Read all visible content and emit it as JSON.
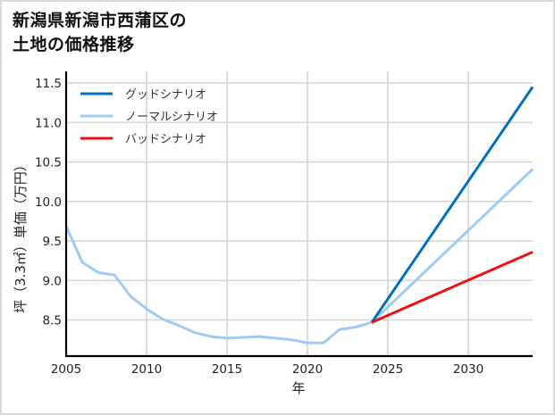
{
  "header": {
    "title_line1": "新潟県新潟市西蒲区の",
    "title_line2": "土地の価格推移"
  },
  "chart_data": {
    "type": "line",
    "title": "新潟県新潟市西蒲区の土地の価格推移",
    "xlabel": "年",
    "ylabel": "坪（3.3㎡）単価（万円）",
    "xlim": [
      2005,
      2034
    ],
    "ylim": [
      8.05,
      11.65
    ],
    "x_ticks": [
      2005,
      2010,
      2015,
      2020,
      2025,
      2030
    ],
    "y_ticks": [
      8.5,
      9.0,
      9.5,
      10.0,
      10.5,
      11.0,
      11.5
    ],
    "y_tick_labels": [
      "8.5",
      "9.0",
      "9.5",
      "10.0",
      "10.5",
      "11.0",
      "11.5"
    ],
    "grid": true,
    "legend_position": "upper-left",
    "series": [
      {
        "name": "グッドシナリオ",
        "color": "#0070c0",
        "x": [
          2024,
          2034
        ],
        "values": [
          8.47,
          11.45
        ]
      },
      {
        "name": "ノーマルシナリオ",
        "color": "#9dcbf7",
        "x": [
          2005,
          2006,
          2007,
          2008,
          2009,
          2010,
          2011,
          2012,
          2013,
          2014,
          2015,
          2016,
          2017,
          2018,
          2019,
          2020,
          2021,
          2022,
          2023,
          2024,
          2034
        ],
        "values": [
          9.69,
          9.23,
          9.1,
          9.07,
          8.8,
          8.64,
          8.51,
          8.43,
          8.34,
          8.29,
          8.27,
          8.28,
          8.29,
          8.27,
          8.25,
          8.21,
          8.21,
          8.38,
          8.41,
          8.47,
          10.41
        ]
      },
      {
        "name": "バッドシナリオ",
        "color": "#ee1111",
        "x": [
          2024,
          2034
        ],
        "values": [
          8.47,
          9.36
        ]
      }
    ]
  }
}
